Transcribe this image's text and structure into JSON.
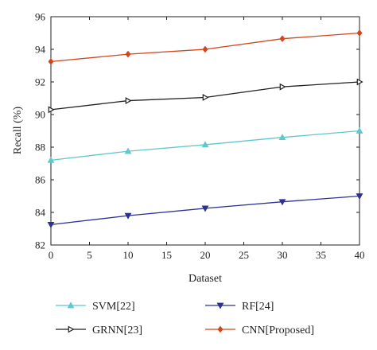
{
  "chart_data": {
    "type": "line",
    "title": "",
    "xlabel": "Dataset",
    "ylabel": "Recall (%)",
    "x": [
      0,
      10,
      20,
      30,
      40
    ],
    "xlim": [
      0,
      40
    ],
    "ylim": [
      82,
      96
    ],
    "xticks": [
      0,
      5,
      10,
      15,
      20,
      25,
      30,
      35,
      40
    ],
    "yticks": [
      82,
      84,
      86,
      88,
      90,
      92,
      94,
      96
    ],
    "grid": false,
    "legend_position": "bottom",
    "series": [
      {
        "name": "SVM[22]",
        "values": [
          87.2,
          87.75,
          88.15,
          88.6,
          89.0
        ],
        "color": "#5ec8cc",
        "marker": "triangle-up"
      },
      {
        "name": "GRNN[23]",
        "values": [
          90.3,
          90.85,
          91.05,
          91.7,
          92.0
        ],
        "color": "#231f20",
        "marker": "triangle-right"
      },
      {
        "name": "RF[24]",
        "values": [
          83.25,
          83.8,
          84.25,
          84.65,
          85.0
        ],
        "color": "#2e3192",
        "marker": "triangle-down"
      },
      {
        "name": "CNN[Proposed]",
        "values": [
          93.25,
          93.7,
          94.0,
          94.65,
          95.0
        ],
        "color": "#d2461e",
        "marker": "diamond"
      }
    ]
  }
}
